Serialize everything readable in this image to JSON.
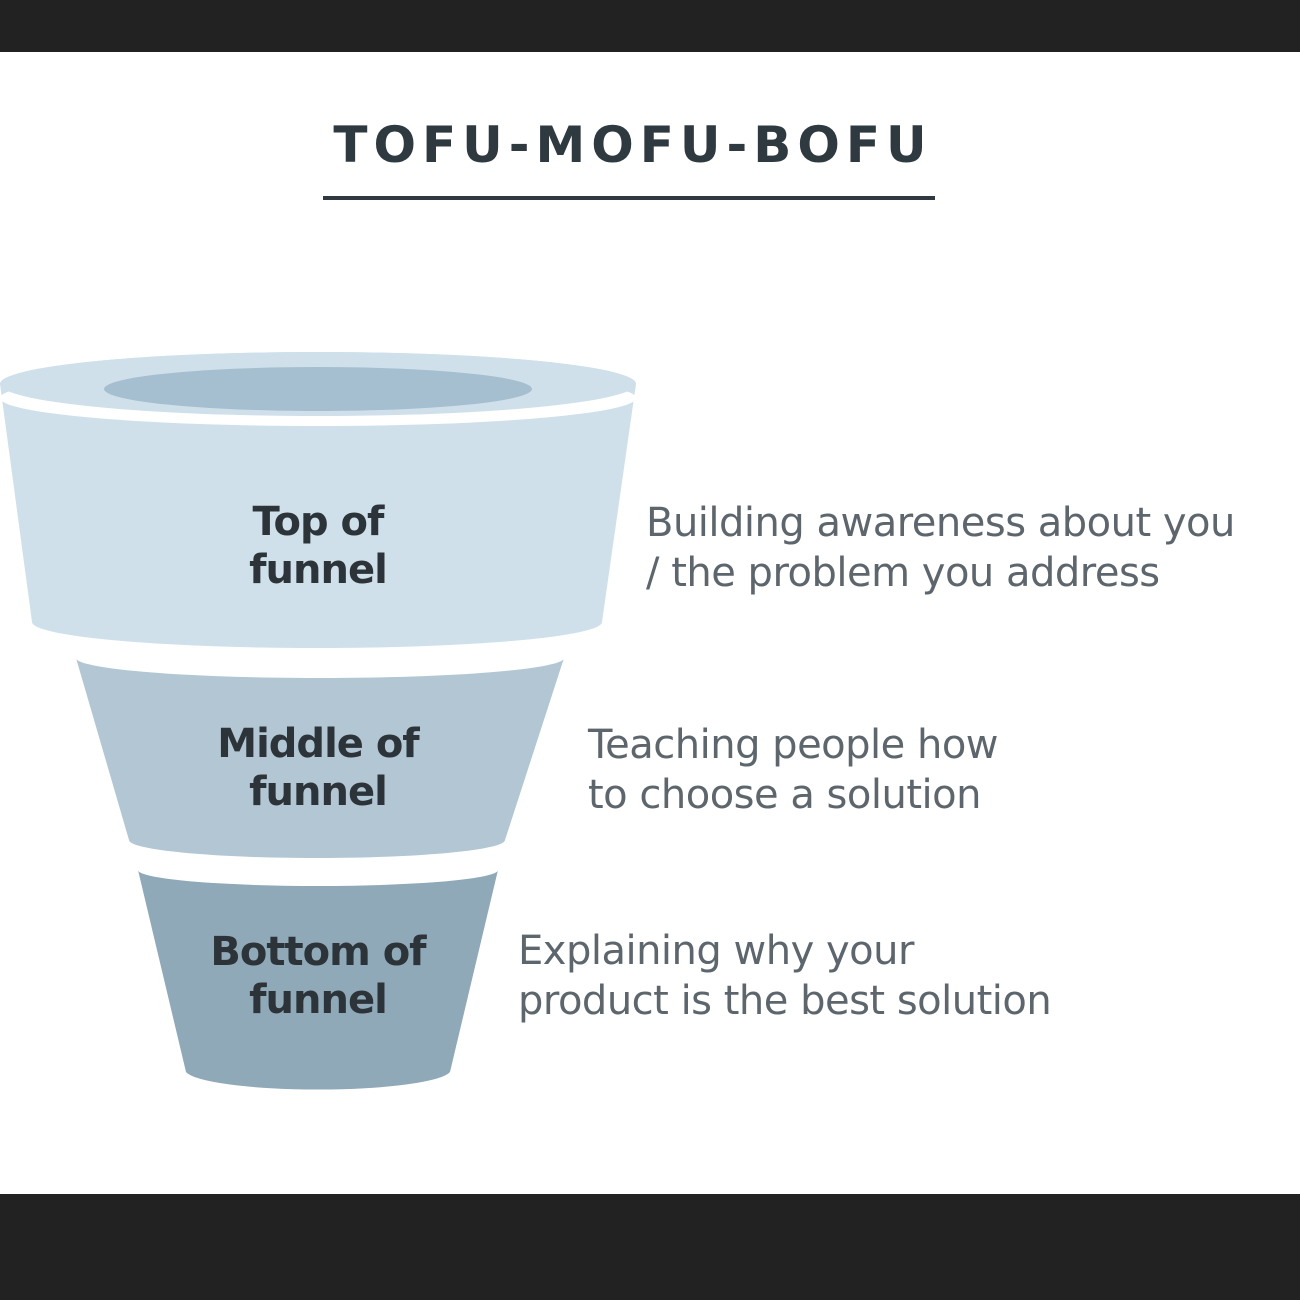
{
  "title": "TOFU-MOFU-BOFU",
  "colors": {
    "top": "#cfe0eb",
    "top_inner": "#a6bfd0",
    "middle": "#b2c6d3",
    "bottom": "#8fa9b8",
    "heading": "#2e3940",
    "label": "#2c3439",
    "description": "#5d666d"
  },
  "stages": [
    {
      "label_line1": "Top of",
      "label_line2": "funnel",
      "desc_line1": "Building awareness about you",
      "desc_line2": "/ the problem you address"
    },
    {
      "label_line1": "Middle of",
      "label_line2": "funnel",
      "desc_line1": "Teaching people how",
      "desc_line2": "to choose a solution"
    },
    {
      "label_line1": "Bottom of",
      "label_line2": "funnel",
      "desc_line1": "Explaining why your",
      "desc_line2": "product is the best solution"
    }
  ]
}
